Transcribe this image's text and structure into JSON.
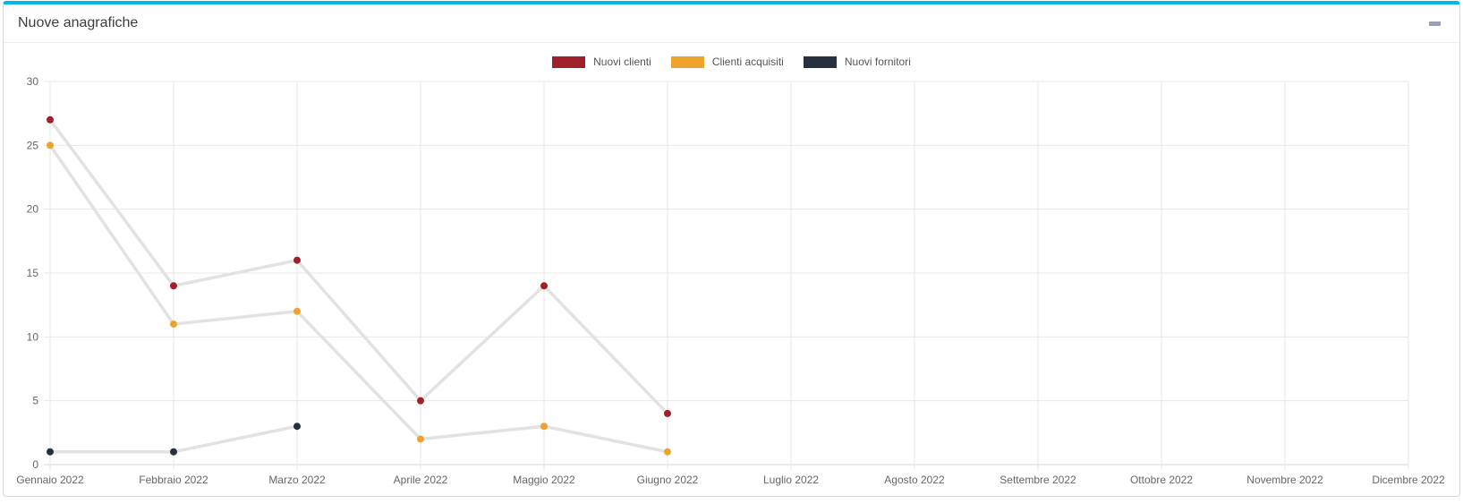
{
  "header": {
    "title": "Nuove anagrafiche",
    "collapse_icon": "minus"
  },
  "colors": {
    "accent_top_bar": "#00b8e4",
    "card_border": "#d7d7d7",
    "grid": "#e7e7e7",
    "axis_line": "#d4d4d4",
    "axis_text": "#666666",
    "legend_text": "#555555",
    "title_text": "#3d3d3d",
    "collapse_icon": "#97a1b2",
    "series_line": "#e2e2e2"
  },
  "chart_data": {
    "type": "line",
    "title": "Nuove anagrafiche",
    "xlabel": "",
    "ylabel": "",
    "categories": [
      "Gennaio 2022",
      "Febbraio 2022",
      "Marzo 2022",
      "Aprile 2022",
      "Maggio 2022",
      "Giugno 2022",
      "Luglio 2022",
      "Agosto 2022",
      "Settembre 2022",
      "Ottobre 2022",
      "Novembre 2022",
      "Dicembre 2022"
    ],
    "y_ticks": [
      0,
      5,
      10,
      15,
      20,
      25,
      30
    ],
    "ylim": [
      0,
      30
    ],
    "grid": true,
    "legend_position": "top",
    "series": [
      {
        "name": "Nuovi clienti",
        "color": "#a02029",
        "values": [
          27,
          14,
          16,
          5,
          14,
          4
        ]
      },
      {
        "name": "Clienti acquisiti",
        "color": "#eea32c",
        "values": [
          25,
          11,
          12,
          2,
          3,
          1
        ]
      },
      {
        "name": "Nuovi fornitori",
        "color": "#26303e",
        "values": [
          1,
          1,
          3
        ]
      }
    ]
  }
}
